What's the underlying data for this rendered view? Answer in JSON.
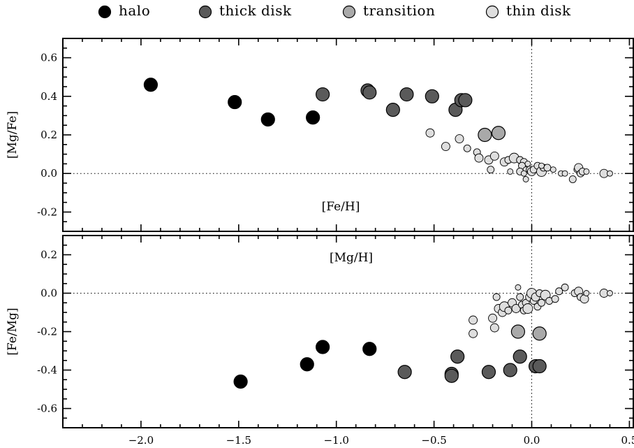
{
  "chart_data": {
    "type": "scatter",
    "legend": {
      "placement": "top",
      "entries": [
        {
          "key": "halo",
          "label": "halo",
          "color": "#000000"
        },
        {
          "key": "thick",
          "label": "thick disk",
          "color": "#5a5a5a"
        },
        {
          "key": "transition",
          "label": "transition",
          "color": "#a9a9a9"
        },
        {
          "key": "thin",
          "label": "thin disk",
          "color": "#dedede"
        }
      ]
    },
    "panels": [
      {
        "id": "top",
        "xlabel": "[Fe/H]",
        "ylabel": "[Mg/Fe]",
        "xlim": [
          -2.4,
          0.52
        ],
        "ylim": [
          -0.3,
          0.7
        ],
        "x_ticks": [
          -2.0,
          -1.5,
          -1.0,
          -0.5,
          0.0,
          0.5
        ],
        "x_ticklabels": [
          "",
          "",
          "",
          "",
          "",
          ""
        ],
        "y_ticks": [
          -0.2,
          0.0,
          0.2,
          0.4,
          0.6
        ],
        "y_ticklabels": [
          "-0.2",
          "0.0",
          "0.2",
          "0.4",
          "0.6"
        ],
        "reference_lines": {
          "x": 0.0,
          "y": 0.0,
          "style": "dotted"
        },
        "series": [
          {
            "key": "halo",
            "points": [
              {
                "x": -1.95,
                "y": 0.46
              },
              {
                "x": -1.52,
                "y": 0.37
              },
              {
                "x": -1.35,
                "y": 0.28
              },
              {
                "x": -1.12,
                "y": 0.29
              }
            ]
          },
          {
            "key": "thick",
            "points": [
              {
                "x": -1.07,
                "y": 0.41
              },
              {
                "x": -0.84,
                "y": 0.43
              },
              {
                "x": -0.83,
                "y": 0.42
              },
              {
                "x": -0.71,
                "y": 0.33
              },
              {
                "x": -0.64,
                "y": 0.41
              },
              {
                "x": -0.51,
                "y": 0.4
              },
              {
                "x": -0.39,
                "y": 0.33
              },
              {
                "x": -0.36,
                "y": 0.38
              },
              {
                "x": -0.34,
                "y": 0.38
              }
            ]
          },
          {
            "key": "transition",
            "points": [
              {
                "x": -0.24,
                "y": 0.2
              },
              {
                "x": -0.17,
                "y": 0.21
              }
            ]
          },
          {
            "key": "thin",
            "points": [
              {
                "x": -0.52,
                "y": 0.21,
                "s": 0.6
              },
              {
                "x": -0.44,
                "y": 0.14,
                "s": 0.6
              },
              {
                "x": -0.37,
                "y": 0.18,
                "s": 0.6
              },
              {
                "x": -0.33,
                "y": 0.13,
                "s": 0.5
              },
              {
                "x": -0.28,
                "y": 0.11,
                "s": 0.5
              },
              {
                "x": -0.27,
                "y": 0.08,
                "s": 0.6
              },
              {
                "x": -0.22,
                "y": 0.07,
                "s": 0.6
              },
              {
                "x": -0.19,
                "y": 0.09,
                "s": 0.6
              },
              {
                "x": -0.21,
                "y": 0.02,
                "s": 0.5
              },
              {
                "x": -0.14,
                "y": 0.06,
                "s": 0.6
              },
              {
                "x": -0.12,
                "y": 0.07,
                "s": 0.5
              },
              {
                "x": -0.09,
                "y": 0.08,
                "s": 0.7
              },
              {
                "x": -0.11,
                "y": 0.01,
                "s": 0.4
              },
              {
                "x": -0.06,
                "y": 0.07,
                "s": 0.5
              },
              {
                "x": -0.04,
                "y": 0.06,
                "s": 0.5
              },
              {
                "x": -0.05,
                "y": 0.04,
                "s": 0.5
              },
              {
                "x": -0.03,
                "y": 0.02,
                "s": 0.4
              },
              {
                "x": -0.02,
                "y": 0.05,
                "s": 0.4
              },
              {
                "x": -0.01,
                "y": 0.02,
                "s": 0.5
              },
              {
                "x": -0.06,
                "y": 0.01,
                "s": 0.5
              },
              {
                "x": -0.04,
                "y": 0.0,
                "s": 0.4
              },
              {
                "x": -0.03,
                "y": -0.03,
                "s": 0.4
              },
              {
                "x": 0.0,
                "y": 0.01,
                "s": 0.6
              },
              {
                "x": 0.01,
                "y": 0.02,
                "s": 0.5
              },
              {
                "x": 0.03,
                "y": 0.04,
                "s": 0.5
              },
              {
                "x": 0.05,
                "y": 0.01,
                "s": 0.7
              },
              {
                "x": 0.06,
                "y": 0.03,
                "s": 0.5
              },
              {
                "x": 0.08,
                "y": 0.03,
                "s": 0.5
              },
              {
                "x": 0.11,
                "y": 0.02,
                "s": 0.4
              },
              {
                "x": 0.05,
                "y": 0.04,
                "s": 0.4
              },
              {
                "x": 0.15,
                "y": 0.0,
                "s": 0.4
              },
              {
                "x": 0.17,
                "y": 0.0,
                "s": 0.4
              },
              {
                "x": 0.21,
                "y": -0.03,
                "s": 0.5
              },
              {
                "x": 0.23,
                "y": 0.02,
                "s": 0.4
              },
              {
                "x": 0.24,
                "y": 0.03,
                "s": 0.6
              },
              {
                "x": 0.25,
                "y": 0.0,
                "s": 0.5
              },
              {
                "x": 0.26,
                "y": 0.01,
                "s": 0.5
              },
              {
                "x": 0.28,
                "y": 0.01,
                "s": 0.4
              },
              {
                "x": 0.37,
                "y": 0.0,
                "s": 0.6
              },
              {
                "x": 0.4,
                "y": 0.0,
                "s": 0.4
              }
            ]
          }
        ]
      },
      {
        "id": "bottom",
        "xlabel": "[Mg/H]",
        "ylabel": "[Fe/Mg]",
        "xlim": [
          -2.4,
          0.52
        ],
        "ylim": [
          -0.7,
          0.3
        ],
        "x_ticks": [
          -2.0,
          -1.5,
          -1.0,
          -0.5,
          0.0,
          0.5
        ],
        "x_ticklabels": [
          "−2.0",
          "−1.5",
          "−1.0",
          "−0.5",
          "0.0",
          "0.5"
        ],
        "y_ticks": [
          -0.6,
          -0.4,
          -0.2,
          0.0,
          0.2
        ],
        "y_ticklabels": [
          "-0.6",
          "-0.4",
          "-0.2",
          "0.0",
          "0.2"
        ],
        "reference_lines": {
          "x": 0.0,
          "y": 0.0,
          "style": "dotted"
        },
        "series": [
          {
            "key": "halo",
            "points": [
              {
                "x": -1.49,
                "y": -0.46
              },
              {
                "x": -1.15,
                "y": -0.37
              },
              {
                "x": -1.07,
                "y": -0.28
              },
              {
                "x": -0.83,
                "y": -0.29
              }
            ]
          },
          {
            "key": "thick",
            "points": [
              {
                "x": -0.65,
                "y": -0.41
              },
              {
                "x": -0.41,
                "y": -0.42
              },
              {
                "x": -0.41,
                "y": -0.43
              },
              {
                "x": -0.38,
                "y": -0.33
              },
              {
                "x": -0.22,
                "y": -0.41
              },
              {
                "x": -0.11,
                "y": -0.4
              },
              {
                "x": -0.06,
                "y": -0.33
              },
              {
                "x": 0.02,
                "y": -0.38
              },
              {
                "x": 0.04,
                "y": -0.38
              }
            ]
          },
          {
            "key": "transition",
            "points": [
              {
                "x": -0.07,
                "y": -0.2
              },
              {
                "x": 0.04,
                "y": -0.21
              }
            ]
          },
          {
            "key": "thin",
            "points": [
              {
                "x": -0.3,
                "y": -0.14,
                "s": 0.6
              },
              {
                "x": -0.3,
                "y": -0.21,
                "s": 0.6
              },
              {
                "x": -0.2,
                "y": -0.13,
                "s": 0.6
              },
              {
                "x": -0.19,
                "y": -0.18,
                "s": 0.6
              },
              {
                "x": -0.18,
                "y": -0.02,
                "s": 0.5
              },
              {
                "x": -0.17,
                "y": -0.08,
                "s": 0.6
              },
              {
                "x": -0.15,
                "y": -0.1,
                "s": 0.6
              },
              {
                "x": -0.14,
                "y": -0.07,
                "s": 0.7
              },
              {
                "x": -0.12,
                "y": -0.09,
                "s": 0.5
              },
              {
                "x": -0.1,
                "y": -0.05,
                "s": 0.6
              },
              {
                "x": -0.08,
                "y": -0.08,
                "s": 0.6
              },
              {
                "x": -0.07,
                "y": 0.03,
                "s": 0.4
              },
              {
                "x": -0.06,
                "y": -0.02,
                "s": 0.5
              },
              {
                "x": -0.05,
                "y": -0.06,
                "s": 0.5
              },
              {
                "x": -0.04,
                "y": -0.09,
                "s": 0.5
              },
              {
                "x": -0.03,
                "y": -0.05,
                "s": 0.5
              },
              {
                "x": -0.02,
                "y": -0.08,
                "s": 0.7
              },
              {
                "x": -0.01,
                "y": -0.02,
                "s": 0.6
              },
              {
                "x": 0.0,
                "y": 0.0,
                "s": 0.7
              },
              {
                "x": 0.01,
                "y": -0.04,
                "s": 0.5
              },
              {
                "x": 0.02,
                "y": -0.02,
                "s": 0.6
              },
              {
                "x": 0.03,
                "y": -0.07,
                "s": 0.5
              },
              {
                "x": 0.04,
                "y": 0.0,
                "s": 0.5
              },
              {
                "x": 0.05,
                "y": -0.05,
                "s": 0.5
              },
              {
                "x": 0.07,
                "y": -0.01,
                "s": 0.7
              },
              {
                "x": 0.09,
                "y": -0.04,
                "s": 0.5
              },
              {
                "x": 0.12,
                "y": -0.03,
                "s": 0.5
              },
              {
                "x": 0.14,
                "y": 0.01,
                "s": 0.5
              },
              {
                "x": 0.17,
                "y": 0.03,
                "s": 0.5
              },
              {
                "x": 0.22,
                "y": 0.0,
                "s": 0.5
              },
              {
                "x": 0.24,
                "y": 0.01,
                "s": 0.6
              },
              {
                "x": 0.25,
                "y": -0.02,
                "s": 0.5
              },
              {
                "x": 0.27,
                "y": -0.03,
                "s": 0.6
              },
              {
                "x": 0.28,
                "y": 0.0,
                "s": 0.4
              },
              {
                "x": 0.37,
                "y": 0.0,
                "s": 0.6
              },
              {
                "x": 0.4,
                "y": 0.0,
                "s": 0.4
              }
            ]
          }
        ]
      }
    ]
  }
}
